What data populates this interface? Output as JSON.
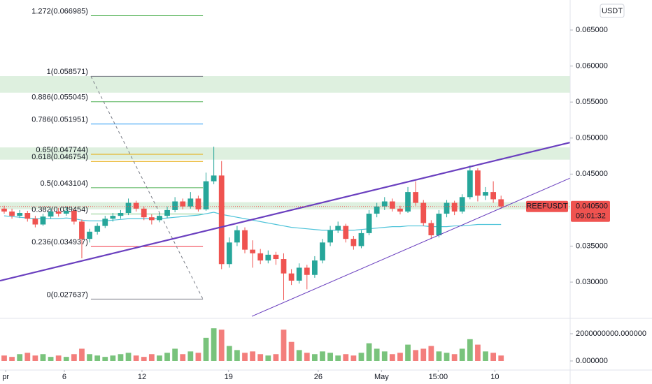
{
  "chart_data": {
    "type": "candlestick",
    "symbol": "REEFUSDT",
    "currency": "USDT",
    "up_color": "#26a69a",
    "down_color": "#ef5350",
    "ma_color": "#4dc3d9",
    "trend_color": "#6a3fbf",
    "zone_color": "#c8e6c9",
    "xlim": [
      -0.54,
      72.9
    ],
    "xticks": [
      {
        "value": 0.2,
        "label": "pr"
      },
      {
        "value": 7.75,
        "label": "6"
      },
      {
        "value": 17.75,
        "label": "12"
      },
      {
        "value": 28.9,
        "label": "19"
      },
      {
        "value": 40.45,
        "label": "26"
      },
      {
        "value": 48.6,
        "label": "May"
      },
      {
        "value": 55.9,
        "label": "15:00"
      },
      {
        "value": 63.2,
        "label": "10"
      }
    ],
    "ylim": [
      0.02506,
      0.06917
    ],
    "yticks": [
      {
        "value": 0.065,
        "label": "0.065000"
      },
      {
        "value": 0.06,
        "label": "0.060000"
      },
      {
        "value": 0.055,
        "label": "0.055000"
      },
      {
        "value": 0.05,
        "label": "0.050000"
      },
      {
        "value": 0.045,
        "label": "0.045000"
      },
      {
        "value": 0.035,
        "label": "0.035000"
      },
      {
        "value": 0.03,
        "label": "0.030000"
      }
    ],
    "candles": [
      [
        0.0402,
        0.0406,
        0.0395,
        0.0398
      ],
      [
        0.0398,
        0.0402,
        0.0388,
        0.0392
      ],
      [
        0.0392,
        0.04,
        0.0389,
        0.0396
      ],
      [
        0.0396,
        0.0399,
        0.0384,
        0.0388
      ],
      [
        0.0388,
        0.0392,
        0.0376,
        0.038
      ],
      [
        0.038,
        0.0395,
        0.0378,
        0.0391
      ],
      [
        0.0391,
        0.0402,
        0.0388,
        0.0398
      ],
      [
        0.0398,
        0.0403,
        0.0391,
        0.0395
      ],
      [
        0.0395,
        0.0404,
        0.0392,
        0.0399
      ],
      [
        0.0399,
        0.0401,
        0.038,
        0.0384
      ],
      [
        0.0384,
        0.0387,
        0.0333,
        0.036
      ],
      [
        0.036,
        0.0374,
        0.0355,
        0.037
      ],
      [
        0.037,
        0.0382,
        0.0366,
        0.0378
      ],
      [
        0.0378,
        0.0392,
        0.0375,
        0.0388
      ],
      [
        0.0388,
        0.0396,
        0.0384,
        0.0392
      ],
      [
        0.0392,
        0.04,
        0.0388,
        0.0396
      ],
      [
        0.0396,
        0.0416,
        0.0393,
        0.041
      ],
      [
        0.041,
        0.0413,
        0.0398,
        0.0402
      ],
      [
        0.0402,
        0.0405,
        0.0386,
        0.039
      ],
      [
        0.039,
        0.0394,
        0.038,
        0.0386
      ],
      [
        0.0386,
        0.0396,
        0.0383,
        0.0392
      ],
      [
        0.0392,
        0.0405,
        0.0389,
        0.04
      ],
      [
        0.04,
        0.0418,
        0.0397,
        0.0412
      ],
      [
        0.0412,
        0.0416,
        0.0401,
        0.0405
      ],
      [
        0.0405,
        0.0425,
        0.0402,
        0.0416
      ],
      [
        0.0416,
        0.042,
        0.0398,
        0.0401
      ],
      [
        0.0401,
        0.0452,
        0.0399,
        0.044
      ],
      [
        0.044,
        0.0488,
        0.0436,
        0.0448
      ],
      [
        0.0448,
        0.0468,
        0.0318,
        0.0325
      ],
      [
        0.0325,
        0.0362,
        0.032,
        0.0355
      ],
      [
        0.0355,
        0.0378,
        0.035,
        0.0372
      ],
      [
        0.0372,
        0.0376,
        0.034,
        0.0345
      ],
      [
        0.0345,
        0.0358,
        0.032,
        0.034
      ],
      [
        0.034,
        0.0346,
        0.0325,
        0.033
      ],
      [
        0.033,
        0.0344,
        0.0326,
        0.0338
      ],
      [
        0.0338,
        0.0342,
        0.0324,
        0.0332
      ],
      [
        0.0332,
        0.034,
        0.0275,
        0.0312
      ],
      [
        0.0312,
        0.0318,
        0.0296,
        0.0302
      ],
      [
        0.0302,
        0.0326,
        0.0298,
        0.032
      ],
      [
        0.032,
        0.0324,
        0.029,
        0.031
      ],
      [
        0.031,
        0.0336,
        0.0306,
        0.033
      ],
      [
        0.033,
        0.036,
        0.0326,
        0.0355
      ],
      [
        0.0355,
        0.0378,
        0.035,
        0.0372
      ],
      [
        0.0372,
        0.0384,
        0.0368,
        0.0378
      ],
      [
        0.0378,
        0.0381,
        0.0355,
        0.036
      ],
      [
        0.036,
        0.0364,
        0.0345,
        0.035
      ],
      [
        0.035,
        0.0372,
        0.0347,
        0.0368
      ],
      [
        0.0368,
        0.04,
        0.0365,
        0.0395
      ],
      [
        0.0395,
        0.041,
        0.039,
        0.0405
      ],
      [
        0.0405,
        0.0418,
        0.04,
        0.0412
      ],
      [
        0.0412,
        0.0416,
        0.0398,
        0.0402
      ],
      [
        0.0402,
        0.0406,
        0.0394,
        0.0398
      ],
      [
        0.0398,
        0.0432,
        0.0396,
        0.0425
      ],
      [
        0.0425,
        0.044,
        0.0406,
        0.041
      ],
      [
        0.041,
        0.0414,
        0.0378,
        0.0382
      ],
      [
        0.0382,
        0.0386,
        0.036,
        0.0365
      ],
      [
        0.0365,
        0.04,
        0.0362,
        0.0395
      ],
      [
        0.0395,
        0.0414,
        0.039,
        0.041
      ],
      [
        0.041,
        0.0413,
        0.0393,
        0.0398
      ],
      [
        0.0398,
        0.0422,
        0.0395,
        0.0418
      ],
      [
        0.0418,
        0.0462,
        0.0415,
        0.0455
      ],
      [
        0.0455,
        0.0458,
        0.0412,
        0.042
      ],
      [
        0.042,
        0.0432,
        0.0414,
        0.0425
      ],
      [
        0.0425,
        0.044,
        0.041,
        0.0415
      ],
      [
        0.0415,
        0.042,
        0.0402,
        0.0405
      ]
    ],
    "ma": [
      0.0392,
      0.0391,
      0.039,
      0.0389,
      0.0388,
      0.0388,
      0.0388,
      0.0388,
      0.0389,
      0.0388,
      0.0386,
      0.0385,
      0.0385,
      0.0385,
      0.0386,
      0.0387,
      0.0388,
      0.0388,
      0.0388,
      0.0388,
      0.0388,
      0.0389,
      0.039,
      0.0391,
      0.0392,
      0.0393,
      0.0395,
      0.0397,
      0.0394,
      0.0392,
      0.039,
      0.0388,
      0.0386,
      0.0384,
      0.0382,
      0.038,
      0.0378,
      0.0376,
      0.0375,
      0.0374,
      0.0373,
      0.0372,
      0.0372,
      0.0372,
      0.0372,
      0.0372,
      0.0373,
      0.0374,
      0.0375,
      0.0376,
      0.0377,
      0.0377,
      0.0378,
      0.0378,
      0.0378,
      0.0377,
      0.0377,
      0.0377,
      0.0378,
      0.0378,
      0.0379,
      0.038,
      0.038,
      0.038,
      0.038
    ],
    "volumes": [
      400000000,
      300000000,
      500000000,
      600000000,
      400000000,
      500000000,
      300000000,
      400000000,
      300000000,
      500000000,
      900000000,
      500000000,
      400000000,
      300000000,
      400000000,
      500000000,
      600000000,
      400000000,
      300000000,
      500000000,
      400000000,
      600000000,
      900000000,
      500000000,
      700000000,
      600000000,
      1700000000,
      2400000000,
      2300000000,
      1100000000,
      800000000,
      600000000,
      700000000,
      500000000,
      400000000,
      500000000,
      2300000000,
      1400000000,
      800000000,
      600000000,
      500000000,
      700000000,
      600000000,
      400000000,
      500000000,
      400000000,
      600000000,
      1300000000,
      900000000,
      700000000,
      500000000,
      600000000,
      1200000000,
      800000000,
      900000000,
      1100000000,
      700000000,
      600000000,
      500000000,
      900000000,
      1600000000,
      1200000000,
      700000000,
      600000000,
      400000000
    ],
    "vlim": [
      -666666667,
      3025641026
    ],
    "vticks": [
      {
        "value": 2000000000,
        "label": "2000000000.000000"
      },
      {
        "value": 0,
        "label": "0.000000"
      }
    ],
    "fib_levels": [
      {
        "value": 0.066985,
        "label": "1.272(0.066985)",
        "color": "#4caf50"
      },
      {
        "value": 0.058571,
        "label": "1(0.058571)",
        "color": "#787b86"
      },
      {
        "value": 0.055045,
        "label": "0.886(0.055045)",
        "color": "#4caf50"
      },
      {
        "value": 0.051951,
        "label": "0.786(0.051951)",
        "color": "#2196f3"
      },
      {
        "value": 0.047744,
        "label": "0.65(0.047744)",
        "color": "#e6a700"
      },
      {
        "value": 0.046754,
        "label": "0.618(0.046754)",
        "color": "#e6a700"
      },
      {
        "value": 0.043104,
        "label": "0.5(0.043104)",
        "color": "#4caf50"
      },
      {
        "value": 0.039454,
        "label": "0.382(0.039454)",
        "color": "#81c784"
      },
      {
        "value": 0.034937,
        "label": "0.236(0.034937)",
        "color": "#f23645"
      },
      {
        "value": 0.027637,
        "label": "0(0.027637)",
        "color": "#787b86"
      }
    ],
    "fib_span": [
      11.17,
      25.6
    ],
    "zones": [
      [
        0.0563,
        0.0586
      ],
      [
        0.047,
        0.0487
      ],
      [
        0.0401,
        0.0411
      ]
    ],
    "trendlines": [
      {
        "from": [
          -0.54,
          0.03019
        ],
        "to": [
          72.9,
          0.04939
        ],
        "width": 2.2
      },
      {
        "from": [
          31.9,
          0.02525
        ],
        "to": [
          72.9,
          0.04444
        ],
        "width": 1
      }
    ],
    "fib_diagonal": {
      "from": [
        11.17,
        0.058571
      ],
      "to": [
        25.6,
        0.027637
      ]
    },
    "last_price": 0.0405,
    "last_price_label": "0.040500",
    "countdown": "09:01:32"
  }
}
